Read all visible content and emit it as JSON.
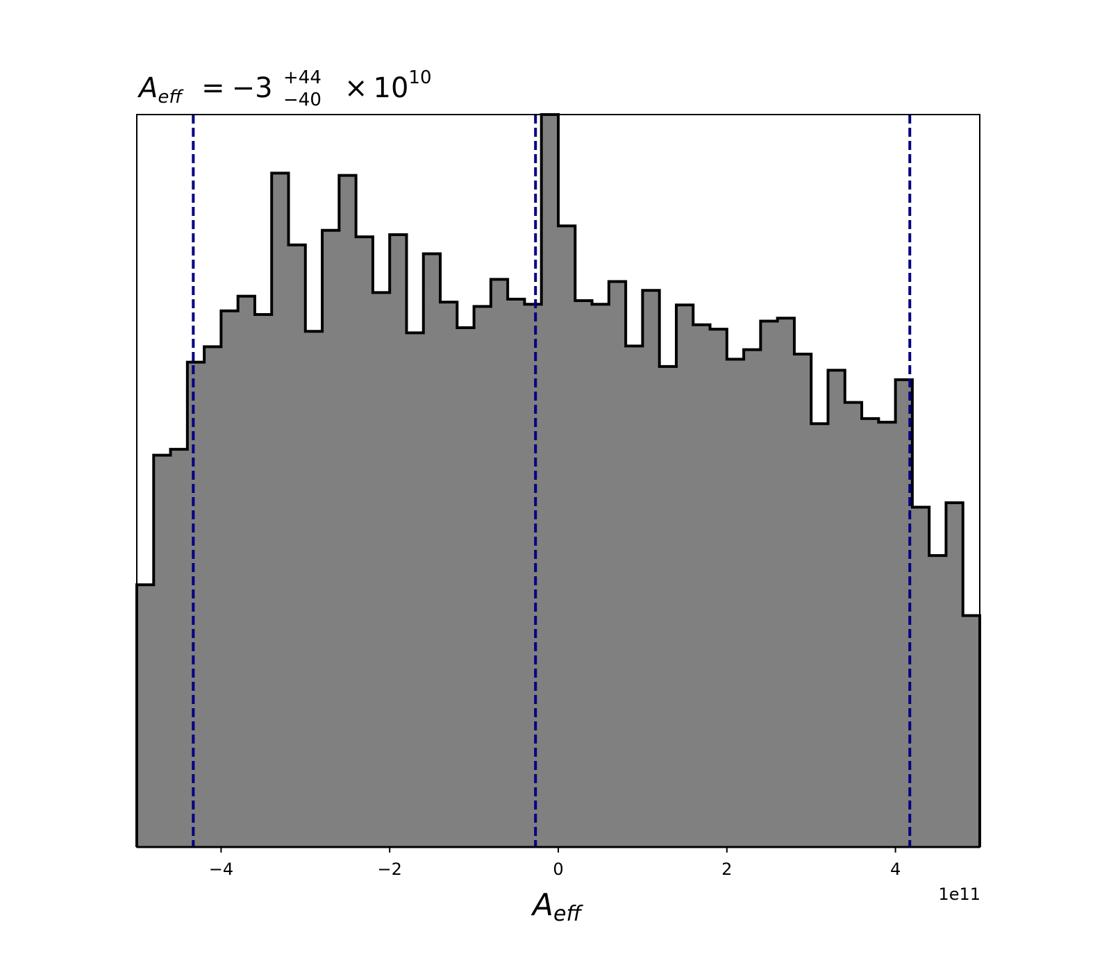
{
  "chart_data": {
    "type": "histogram",
    "title": {
      "symbol": "A",
      "symbol_sub": "eff",
      "equals": "=",
      "median": "−3",
      "upper": "+44",
      "lower": "−40",
      "times": "×",
      "base": "10",
      "exponent": "10"
    },
    "xlabel": {
      "symbol": "A",
      "sub": "eff"
    },
    "x_offset_label": "1e11",
    "xlim": [
      -5.0,
      5.0
    ],
    "ylim": [
      0,
      1000
    ],
    "x_ticks": [
      -4,
      -2,
      0,
      2,
      4
    ],
    "x_tick_labels": [
      "−4",
      "−2",
      "0",
      "2",
      "4"
    ],
    "y_axis_visible": false,
    "fill_color": "#808080",
    "edge_color": "#000000",
    "quantile_line_color": "#000080",
    "quantile_lines": [
      -4.33,
      -0.27,
      4.17
    ],
    "bin_edges": [
      -5.0,
      -4.8,
      -4.6,
      -4.4,
      -4.2,
      -4.0,
      -3.8,
      -3.6,
      -3.4,
      -3.2,
      -3.0,
      -2.8,
      -2.6,
      -2.4,
      -2.2,
      -2.0,
      -1.8,
      -1.6,
      -1.4,
      -1.2,
      -1.0,
      -0.8,
      -0.6,
      -0.4,
      -0.2,
      0.0,
      0.2,
      0.4,
      0.6,
      0.8,
      1.0,
      1.2,
      1.4,
      1.6,
      1.8,
      2.0,
      2.2,
      2.4,
      2.6,
      2.8,
      3.0,
      3.2,
      3.4,
      3.6,
      3.8,
      4.0,
      4.2,
      4.4,
      4.6,
      4.8,
      5.0
    ],
    "counts": [
      358,
      535,
      543,
      662,
      683,
      732,
      752,
      727,
      920,
      822,
      704,
      842,
      917,
      833,
      757,
      836,
      702,
      810,
      744,
      709,
      738,
      775,
      748,
      741,
      1000,
      848,
      746,
      741,
      772,
      684,
      760,
      656,
      740,
      713,
      707,
      666,
      679,
      718,
      722,
      673,
      578,
      651,
      607,
      585,
      580,
      638,
      464,
      398,
      470,
      316
    ]
  }
}
